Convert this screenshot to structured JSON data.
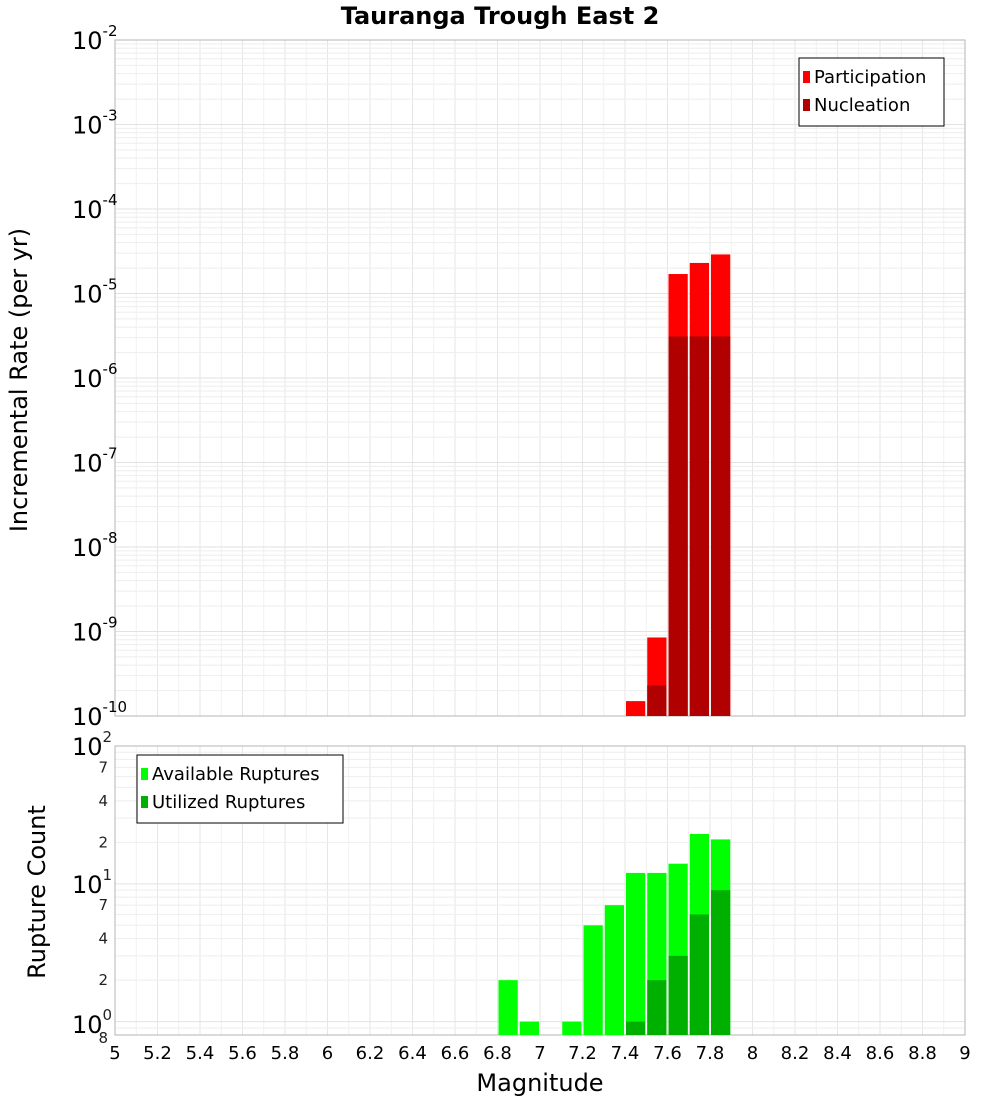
{
  "chart_data": [
    {
      "type": "bar",
      "id": "rate",
      "title": "Tauranga Trough East 2",
      "xlabel": "Magnitude",
      "ylabel": "Incremental Rate (per yr)",
      "yscale": "log",
      "xlim": [
        5,
        9
      ],
      "ylim": [
        1e-10,
        0.01
      ],
      "bin_width": 0.1,
      "ytick_labels": [
        {
          "value": 1e-10,
          "base": "10",
          "exp": "-10"
        },
        {
          "value": 1e-09,
          "base": "10",
          "exp": "-9"
        },
        {
          "value": 1e-08,
          "base": "10",
          "exp": "-8"
        },
        {
          "value": 1e-07,
          "base": "10",
          "exp": "-7"
        },
        {
          "value": 1e-06,
          "base": "10",
          "exp": "-6"
        },
        {
          "value": 1e-05,
          "base": "10",
          "exp": "-5"
        },
        {
          "value": 0.0001,
          "base": "10",
          "exp": "-4"
        },
        {
          "value": 0.001,
          "base": "10",
          "exp": "-3"
        },
        {
          "value": 0.01,
          "base": "10",
          "exp": "-2"
        }
      ],
      "legend_position": "top-right",
      "series": [
        {
          "name": "Participation",
          "color": "#ff0000",
          "points": [
            {
              "x": 7.45,
              "y": 1.5e-10
            },
            {
              "x": 7.55,
              "y": 8.5e-10
            },
            {
              "x": 7.65,
              "y": 1.7e-05
            },
            {
              "x": 7.75,
              "y": 2.3e-05
            },
            {
              "x": 7.85,
              "y": 2.9e-05
            }
          ]
        },
        {
          "name": "Nucleation",
          "color": "#b00000",
          "points": [
            {
              "x": 7.55,
              "y": 2.3e-10
            },
            {
              "x": 7.65,
              "y": 3.1e-06
            },
            {
              "x": 7.75,
              "y": 3.1e-06
            },
            {
              "x": 7.85,
              "y": 3.1e-06
            }
          ]
        }
      ]
    },
    {
      "type": "bar",
      "id": "count",
      "xlabel": "Magnitude",
      "ylabel": "Rupture Count",
      "yscale": "log",
      "xlim": [
        5,
        9
      ],
      "ylim": [
        0.8,
        100
      ],
      "bin_width": 0.1,
      "xtick_labels": [
        "5",
        "5.2",
        "5.4",
        "5.6",
        "5.8",
        "6",
        "6.2",
        "6.4",
        "6.6",
        "6.8",
        "7",
        "7.2",
        "7.4",
        "7.6",
        "7.8",
        "8",
        "8.2",
        "8.4",
        "8.6",
        "8.8",
        "9"
      ],
      "ytick_labels": [
        {
          "value": 1,
          "base": "10",
          "exp": "0"
        },
        {
          "value": 10,
          "base": "10",
          "exp": "1"
        },
        {
          "value": 100,
          "base": "10",
          "exp": "2"
        }
      ],
      "yminor_labels": [
        {
          "value": 0.8,
          "label": "8"
        },
        {
          "value": 2,
          "label": "2"
        },
        {
          "value": 4,
          "label": "4"
        },
        {
          "value": 7,
          "label": "7"
        },
        {
          "value": 20,
          "label": "2"
        },
        {
          "value": 40,
          "label": "4"
        },
        {
          "value": 70,
          "label": "7"
        }
      ],
      "legend_position": "top-left",
      "series": [
        {
          "name": "Available Ruptures",
          "color": "#00ff00",
          "points": [
            {
              "x": 6.85,
              "y": 2
            },
            {
              "x": 6.95,
              "y": 1
            },
            {
              "x": 7.15,
              "y": 1
            },
            {
              "x": 7.25,
              "y": 5
            },
            {
              "x": 7.35,
              "y": 7
            },
            {
              "x": 7.45,
              "y": 12
            },
            {
              "x": 7.55,
              "y": 12
            },
            {
              "x": 7.65,
              "y": 14
            },
            {
              "x": 7.75,
              "y": 23
            },
            {
              "x": 7.85,
              "y": 21
            }
          ]
        },
        {
          "name": "Utilized Ruptures",
          "color": "#00b000",
          "points": [
            {
              "x": 7.45,
              "y": 1
            },
            {
              "x": 7.55,
              "y": 2
            },
            {
              "x": 7.65,
              "y": 3
            },
            {
              "x": 7.75,
              "y": 6
            },
            {
              "x": 7.85,
              "y": 9
            }
          ]
        }
      ]
    }
  ]
}
